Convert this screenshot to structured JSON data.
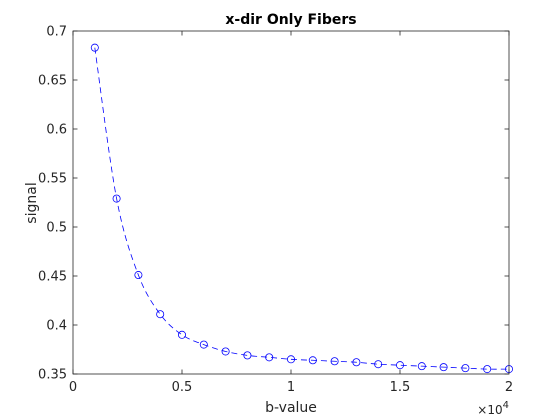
{
  "chart_data": {
    "type": "line",
    "title": "x-dir Only Fibers",
    "xlabel": "b-value",
    "ylabel": "signal",
    "x_multiplier_label": "×10",
    "x_multiplier_exponent": "4",
    "xlim": [
      0,
      20000
    ],
    "ylim": [
      0.35,
      0.7
    ],
    "xtick_values": [
      0,
      5000,
      10000,
      15000,
      20000
    ],
    "xtick_labels": [
      "0",
      "0.5",
      "1",
      "1.5",
      "2"
    ],
    "ytick_values": [
      0.35,
      0.4,
      0.45,
      0.5,
      0.55,
      0.6,
      0.65,
      0.7
    ],
    "ytick_labels": [
      "0.35",
      "0.4",
      "0.45",
      "0.5",
      "0.55",
      "0.6",
      "0.65",
      "0.7"
    ],
    "grid": false,
    "series": [
      {
        "color": "#0000ff",
        "line_style": "dashed",
        "marker": "circle",
        "x": [
          1000,
          2000,
          3000,
          4000,
          5000,
          6000,
          7000,
          8000,
          9000,
          10000,
          11000,
          12000,
          13000,
          14000,
          15000,
          16000,
          17000,
          18000,
          19000,
          20000
        ],
        "y": [
          0.683,
          0.529,
          0.451,
          0.411,
          0.39,
          0.38,
          0.373,
          0.369,
          0.367,
          0.365,
          0.364,
          0.363,
          0.362,
          0.36,
          0.359,
          0.358,
          0.357,
          0.356,
          0.355,
          0.355
        ]
      }
    ]
  }
}
